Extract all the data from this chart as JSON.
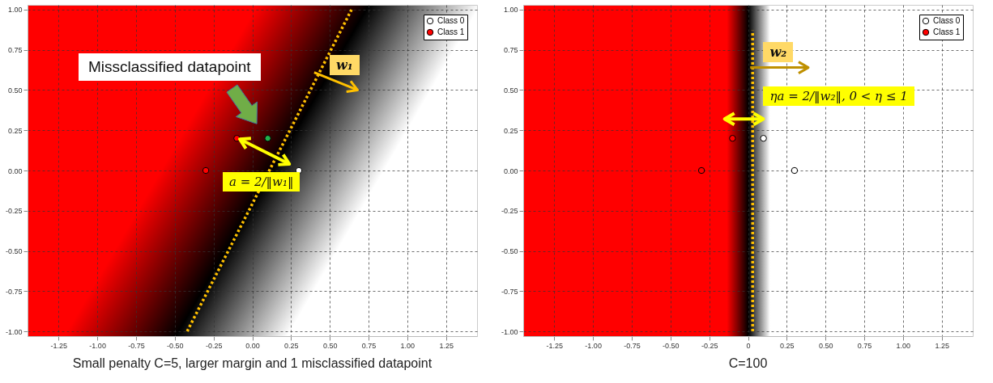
{
  "chart_data": [
    {
      "type": "scatter",
      "title": "Small penalty C=5, larger margin and 1 misclassified datapoint",
      "xlim": [
        -1.45,
        1.45
      ],
      "ylim": [
        -1.03,
        1.03
      ],
      "xticks": [
        {
          "value": -1.25,
          "label": "-1.25"
        },
        {
          "value": -1,
          "label": "-1.00"
        },
        {
          "value": -0.75,
          "label": "-0.75"
        },
        {
          "value": -0.5,
          "label": "-0.50"
        },
        {
          "value": -0.25,
          "label": "-0.25"
        },
        {
          "value": 0,
          "label": "0.00"
        },
        {
          "value": 0.25,
          "label": "0.25"
        },
        {
          "value": 0.5,
          "label": "0.50"
        },
        {
          "value": 0.75,
          "label": "0.75"
        },
        {
          "value": 1,
          "label": "1.00"
        },
        {
          "value": 1.25,
          "label": "1.25"
        }
      ],
      "yticks": [
        {
          "value": -1,
          "label": "-1.00"
        },
        {
          "value": -0.75,
          "label": "-0.75"
        },
        {
          "value": -0.5,
          "label": "-0.50"
        },
        {
          "value": -0.25,
          "label": "-0.25"
        },
        {
          "value": 0,
          "label": "0.00"
        },
        {
          "value": 0.25,
          "label": "0.25"
        },
        {
          "value": 0.5,
          "label": "0.50"
        },
        {
          "value": 0.75,
          "label": "0.75"
        },
        {
          "value": 1,
          "label": "1.00"
        }
      ],
      "grid": true,
      "legend": "top right",
      "line_style": "dotted",
      "series": [
        {
          "name": "Class 0",
          "color": "#ffffff",
          "marker": "circle",
          "x": [
            0.3
          ],
          "values": [
            0.0
          ]
        },
        {
          "name": "Class 1",
          "color": "#ff0000",
          "marker": "circle",
          "x": [
            -0.3,
            -0.1
          ],
          "values": [
            0.0,
            0.2
          ]
        },
        {
          "color": "#22b14c",
          "marker": "circle",
          "x": [
            0.1
          ],
          "values": [
            0.2
          ]
        },
        {
          "type": "line",
          "color": "#ffc000",
          "marker": "none",
          "x": [
            -0.42,
            0.64
          ],
          "values": [
            -1,
            1
          ]
        }
      ],
      "annotations": [
        "Missclassified datapoint",
        {
          "text": "a = 2/‖w₁‖",
          "x": 0.3,
          "y": 0.0
        },
        "w₁"
      ]
    },
    {
      "type": "scatter",
      "title": "C=100",
      "xlim": [
        -1.45,
        1.45
      ],
      "ylim": [
        -1.03,
        1.03
      ],
      "xticks": [
        {
          "value": -1.25,
          "label": "-1.25"
        },
        {
          "value": -1,
          "label": "-1.00"
        },
        {
          "value": -0.75,
          "label": "-0.75"
        },
        {
          "value": -0.5,
          "label": "-0.50"
        },
        {
          "value": -0.25,
          "label": "-0.25"
        },
        {
          "value": 0,
          "label": "0"
        },
        {
          "value": 0.25,
          "label": "0.25"
        },
        {
          "value": 0.5,
          "label": "0.50"
        },
        {
          "value": 0.75,
          "label": "0.75"
        },
        {
          "value": 1,
          "label": "1.00"
        },
        {
          "value": 1.25,
          "label": "1.25"
        }
      ],
      "yticks": [
        {
          "value": -1,
          "label": "-1.00"
        },
        {
          "value": -0.75,
          "label": "-0.75"
        },
        {
          "value": -0.5,
          "label": "-0.50"
        },
        {
          "value": -0.25,
          "label": "-0.25"
        },
        {
          "value": 0,
          "label": "0.00"
        },
        {
          "value": 0.25,
          "label": "0.25"
        },
        {
          "value": 0.5,
          "label": "0.50"
        },
        {
          "value": 0.75,
          "label": "0.75"
        },
        {
          "value": 1,
          "label": "1.00"
        }
      ],
      "grid": true,
      "legend": "top right",
      "line_style": "dotted",
      "series": [
        {
          "name": "Class 0",
          "color": "#ffffff",
          "marker": "circle",
          "x": [
            0.3,
            0.1
          ],
          "values": [
            0.0,
            0.2
          ]
        },
        {
          "name": "Class 1",
          "color": "#ff0000",
          "marker": "circle",
          "x": [
            -0.3,
            -0.1
          ],
          "values": [
            0.0,
            0.2
          ]
        },
        {
          "type": "line",
          "color": "#ffc000",
          "marker": "none",
          "x": [
            0.03,
            0.03
          ],
          "values": [
            -1,
            0.87
          ]
        }
      ],
      "annotations": [
        "w₂",
        "ηa = 2/‖w₂‖, 0 < η ≤ 1"
      ]
    }
  ]
}
